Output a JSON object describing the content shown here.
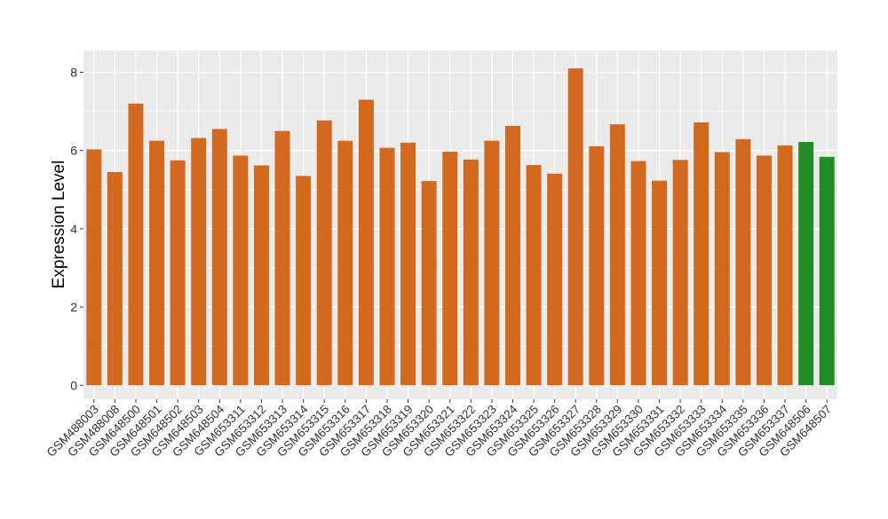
{
  "chart_data": {
    "type": "bar",
    "title": "",
    "xlabel": "",
    "ylabel": "Expression Level",
    "ylim": [
      0,
      8.5
    ],
    "yticks": [
      0,
      2,
      4,
      6,
      8
    ],
    "grid": true,
    "legend": "none",
    "colors": {
      "default": "#d2691e",
      "highlight": "#238b23",
      "panel": "#ebebeb",
      "grid": "#ffffff"
    },
    "categories": [
      "GSM488003",
      "GSM488008",
      "GSM648500",
      "GSM648501",
      "GSM648502",
      "GSM648503",
      "GSM648504",
      "GSM653311",
      "GSM653312",
      "GSM653313",
      "GSM653314",
      "GSM653315",
      "GSM653316",
      "GSM653317",
      "GSM653318",
      "GSM653319",
      "GSM653320",
      "GSM653321",
      "GSM653322",
      "GSM653323",
      "GSM653324",
      "GSM653325",
      "GSM653326",
      "GSM653327",
      "GSM653328",
      "GSM653329",
      "GSM653330",
      "GSM653331",
      "GSM653332",
      "GSM653333",
      "GSM653334",
      "GSM653335",
      "GSM653336",
      "GSM653337",
      "GSM648506",
      "GSM648507"
    ],
    "values": [
      6.03,
      5.45,
      7.2,
      6.25,
      5.75,
      6.32,
      6.55,
      5.87,
      5.62,
      6.5,
      5.35,
      6.77,
      6.25,
      7.3,
      6.07,
      6.2,
      5.22,
      5.97,
      5.77,
      6.25,
      6.63,
      5.63,
      5.41,
      8.1,
      6.11,
      6.67,
      5.73,
      5.23,
      5.76,
      6.72,
      5.96,
      6.29,
      5.87,
      6.13,
      6.22,
      5.84
    ],
    "bar_colors": [
      "#d2691e",
      "#d2691e",
      "#d2691e",
      "#d2691e",
      "#d2691e",
      "#d2691e",
      "#d2691e",
      "#d2691e",
      "#d2691e",
      "#d2691e",
      "#d2691e",
      "#d2691e",
      "#d2691e",
      "#d2691e",
      "#d2691e",
      "#d2691e",
      "#d2691e",
      "#d2691e",
      "#d2691e",
      "#d2691e",
      "#d2691e",
      "#d2691e",
      "#d2691e",
      "#d2691e",
      "#d2691e",
      "#d2691e",
      "#d2691e",
      "#d2691e",
      "#d2691e",
      "#d2691e",
      "#d2691e",
      "#d2691e",
      "#d2691e",
      "#d2691e",
      "#238b23",
      "#238b23"
    ]
  }
}
